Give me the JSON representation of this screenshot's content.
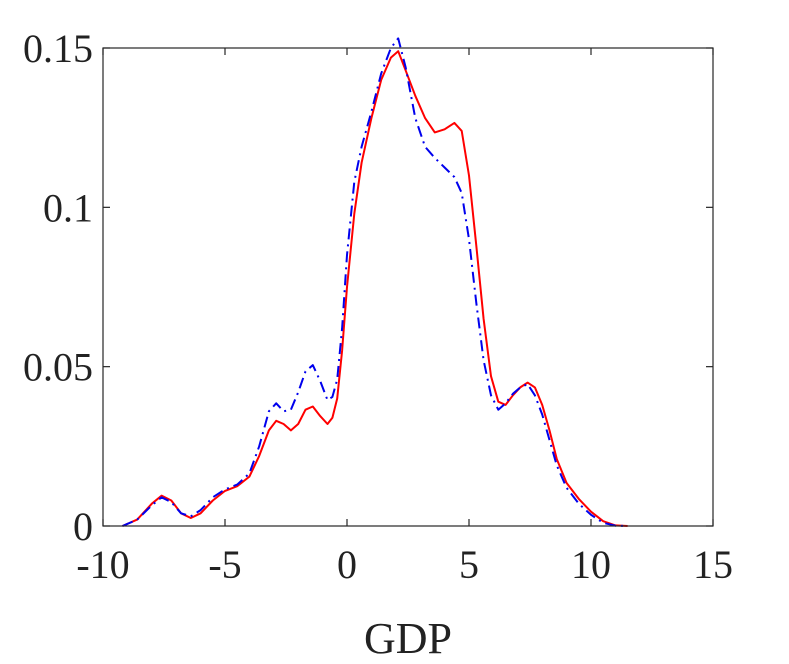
{
  "chart_data": {
    "type": "line",
    "title": "",
    "xlabel": "GDP",
    "ylabel": "",
    "xlim": [
      -10,
      15
    ],
    "ylim": [
      0,
      0.15
    ],
    "xticks": [
      -10,
      -5,
      0,
      5,
      10,
      15
    ],
    "xtick_labels": [
      "-10",
      "-5",
      "0",
      "5",
      "10",
      "15"
    ],
    "yticks": [
      0,
      0.05,
      0.1,
      0.15
    ],
    "ytick_labels": [
      "0",
      "0.05",
      "0.1",
      "0.15"
    ],
    "grid": false,
    "legend": "none",
    "series": [
      {
        "color": "#ff0000",
        "style": "solid",
        "x": [
          -9.2,
          -8.6,
          -8.0,
          -7.6,
          -7.2,
          -6.8,
          -6.4,
          -6.0,
          -5.5,
          -5.0,
          -4.5,
          -4.0,
          -3.6,
          -3.2,
          -2.9,
          -2.6,
          -2.3,
          -2.0,
          -1.7,
          -1.4,
          -1.1,
          -0.8,
          -0.6,
          -0.4,
          -0.2,
          0.0,
          0.3,
          0.6,
          1.0,
          1.4,
          1.8,
          2.1,
          2.4,
          2.8,
          3.2,
          3.6,
          4.0,
          4.4,
          4.7,
          5.0,
          5.3,
          5.6,
          5.9,
          6.2,
          6.5,
          6.8,
          7.1,
          7.4,
          7.7,
          8.0,
          8.3,
          8.6,
          9.0,
          9.5,
          10.0,
          10.5,
          11.0,
          11.5
        ],
        "y": [
          0.0,
          0.002,
          0.007,
          0.0095,
          0.008,
          0.004,
          0.0025,
          0.004,
          0.008,
          0.011,
          0.0125,
          0.0155,
          0.022,
          0.03,
          0.033,
          0.032,
          0.03,
          0.032,
          0.0365,
          0.0375,
          0.0345,
          0.032,
          0.034,
          0.04,
          0.055,
          0.075,
          0.098,
          0.114,
          0.128,
          0.14,
          0.147,
          0.149,
          0.143,
          0.135,
          0.128,
          0.1235,
          0.1245,
          0.1265,
          0.124,
          0.11,
          0.088,
          0.065,
          0.047,
          0.039,
          0.038,
          0.041,
          0.0435,
          0.045,
          0.0435,
          0.038,
          0.03,
          0.021,
          0.0135,
          0.0085,
          0.0045,
          0.0015,
          0.0002,
          0.0
        ]
      },
      {
        "color": "#0000ee",
        "style": "dash-dot",
        "x": [
          -9.2,
          -8.6,
          -8.0,
          -7.6,
          -7.2,
          -6.8,
          -6.4,
          -6.0,
          -5.5,
          -5.0,
          -4.5,
          -4.0,
          -3.6,
          -3.2,
          -2.9,
          -2.6,
          -2.3,
          -2.0,
          -1.7,
          -1.4,
          -1.1,
          -0.8,
          -0.6,
          -0.4,
          -0.2,
          0.0,
          0.3,
          0.6,
          1.0,
          1.4,
          1.8,
          2.1,
          2.4,
          2.8,
          3.2,
          3.6,
          4.0,
          4.4,
          4.7,
          5.0,
          5.3,
          5.6,
          5.9,
          6.2,
          6.5,
          6.8,
          7.1,
          7.4,
          7.7,
          8.0,
          8.3,
          8.6,
          9.0,
          9.5,
          10.0,
          10.5,
          11.0,
          11.5
        ],
        "y": [
          0.0,
          0.002,
          0.0065,
          0.009,
          0.0075,
          0.004,
          0.003,
          0.005,
          0.009,
          0.0115,
          0.013,
          0.0165,
          0.025,
          0.036,
          0.0385,
          0.036,
          0.0365,
          0.042,
          0.0485,
          0.0505,
          0.0455,
          0.0395,
          0.0405,
          0.046,
          0.062,
          0.085,
          0.108,
          0.119,
          0.13,
          0.142,
          0.15,
          0.153,
          0.144,
          0.128,
          0.119,
          0.1155,
          0.1125,
          0.1095,
          0.1045,
          0.09,
          0.07,
          0.052,
          0.041,
          0.0365,
          0.0385,
          0.0415,
          0.0435,
          0.0445,
          0.041,
          0.035,
          0.027,
          0.019,
          0.012,
          0.007,
          0.0035,
          0.001,
          0.0001,
          0.0
        ]
      }
    ]
  }
}
